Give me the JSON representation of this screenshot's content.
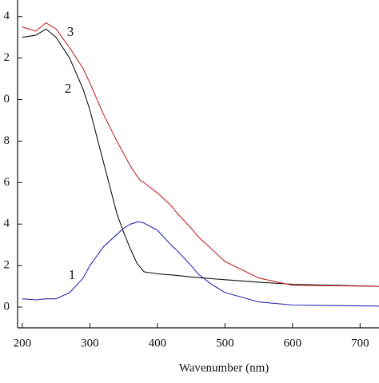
{
  "chart_data": {
    "type": "line",
    "xlabel": "Wavenumber (nm)",
    "x": [
      200,
      220,
      235,
      250,
      270,
      290,
      300,
      320,
      340,
      350,
      360,
      370,
      375,
      380,
      400,
      420,
      430,
      450,
      460,
      480,
      500,
      550,
      600,
      728
    ],
    "series": [
      {
        "name": "1",
        "color": "#2a2ab8",
        "values": [
          0.04,
          0.035,
          0.04,
          0.04,
          0.07,
          0.14,
          0.2,
          0.29,
          0.35,
          0.38,
          0.4,
          0.41,
          0.41,
          0.405,
          0.37,
          0.3,
          0.27,
          0.2,
          0.16,
          0.11,
          0.07,
          0.025,
          0.01,
          0.005
        ]
      },
      {
        "name": "2",
        "color": "#111111",
        "values": [
          1.3,
          1.31,
          1.34,
          1.3,
          1.2,
          1.05,
          0.95,
          0.7,
          0.45,
          0.36,
          0.28,
          0.21,
          0.19,
          0.17,
          0.16,
          0.155,
          0.152,
          0.145,
          0.142,
          0.137,
          0.132,
          0.12,
          0.11,
          0.1
        ]
      },
      {
        "name": "3",
        "color": "#c0282a",
        "values": [
          1.35,
          1.33,
          1.37,
          1.34,
          1.25,
          1.15,
          1.08,
          0.93,
          0.8,
          0.74,
          0.68,
          0.63,
          0.61,
          0.6,
          0.55,
          0.49,
          0.45,
          0.38,
          0.34,
          0.28,
          0.22,
          0.14,
          0.105,
          0.1
        ]
      }
    ],
    "annotations": [
      "1",
      "2",
      "3"
    ],
    "xlim": [
      193,
      728
    ],
    "xticks": [
      200,
      300,
      400,
      500,
      600,
      700
    ],
    "ylim": [
      -0.1,
      1.48
    ],
    "yticks": [
      0,
      {
        "value": 0.2,
        "label": "2"
      },
      {
        "value": 0.4,
        "label": "4"
      },
      {
        "value": 0.6,
        "label": "6"
      },
      {
        "value": 0.8,
        "label": "8"
      },
      {
        "value": 1.0,
        "label": "0"
      },
      {
        "value": 1.2,
        "label": "2"
      },
      {
        "value": 1.4,
        "label": "4"
      }
    ],
    "grid": false
  }
}
